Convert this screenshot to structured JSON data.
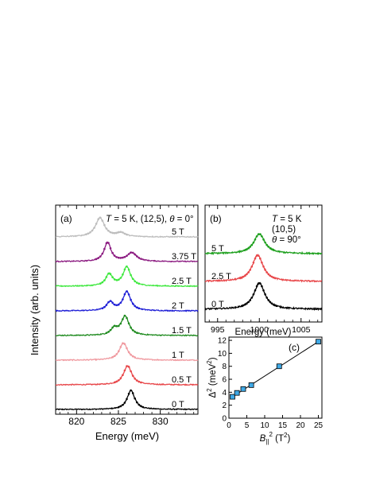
{
  "chart_data": [
    {
      "id": "a",
      "type": "line",
      "panel_label": "(a)",
      "annotation": {
        "T": "T",
        "eq1": " = 5 K,  (12,5), ",
        "theta": "θ",
        "eq2": " = 0°"
      },
      "xlabel": "Energy (meV)",
      "ylabel": "Intensity (arb. units)",
      "xlim": [
        817.5,
        834.5
      ],
      "xticks": [
        820,
        825,
        830
      ],
      "series": [
        {
          "name": "0 T",
          "color": "#000000",
          "peaks": [
            [
              826.5,
              1.0,
              0.55
            ]
          ]
        },
        {
          "name": "0.5 T",
          "color": "#e8474a",
          "peaks": [
            [
              826.1,
              1.0,
              0.6
            ]
          ]
        },
        {
          "name": "1 T",
          "color": "#f09aa0",
          "peaks": [
            [
              825.6,
              0.9,
              0.6
            ]
          ]
        },
        {
          "name": "1.5 T",
          "color": "#1e8a1e",
          "peaks": [
            [
              825.8,
              1.0,
              0.55
            ],
            [
              824.5,
              0.35,
              0.5
            ]
          ]
        },
        {
          "name": "2 T",
          "color": "#1f1fd6",
          "peaks": [
            [
              826.0,
              1.0,
              0.55
            ],
            [
              824.0,
              0.45,
              0.5
            ]
          ]
        },
        {
          "name": "2.5 T",
          "color": "#3ee83e",
          "peaks": [
            [
              826.0,
              1.0,
              0.55
            ],
            [
              823.9,
              0.62,
              0.5
            ]
          ]
        },
        {
          "name": "3.75 T",
          "color": "#8b1a80",
          "peaks": [
            [
              823.7,
              1.0,
              0.5
            ],
            [
              826.6,
              0.45,
              0.7
            ]
          ]
        },
        {
          "name": "5 T",
          "color": "#bdbdbd",
          "peaks": [
            [
              822.8,
              1.0,
              0.65
            ],
            [
              825.3,
              0.2,
              0.6
            ]
          ]
        }
      ]
    },
    {
      "id": "b",
      "type": "line",
      "panel_label": "(b)",
      "annotation": {
        "line1_T": "T",
        "line1_rest": " = 5 K",
        "line2": "(10,5)",
        "line3_theta": "θ",
        "line3_rest": " = 90°"
      },
      "xlabel": "Energy (meV)",
      "xlim": [
        993.5,
        1007.5
      ],
      "xticks": [
        995,
        1000,
        1005
      ],
      "series": [
        {
          "name": "0 T",
          "color": "#000000",
          "peaks": [
            [
              1000.0,
              1.0,
              0.8
            ]
          ]
        },
        {
          "name": "2.5 T",
          "color": "#e8474a",
          "peaks": [
            [
              999.8,
              1.0,
              0.8
            ]
          ]
        },
        {
          "name": "5 T",
          "color": "#1ea01e",
          "peaks": [
            [
              1000.0,
              0.75,
              0.8
            ]
          ]
        }
      ]
    },
    {
      "id": "c",
      "type": "scatter",
      "panel_label": "(c)",
      "xlabel": {
        "B": "B",
        "sub": "||",
        "sup": "2",
        "rest": " (T",
        "sup2": "2",
        "close": ")"
      },
      "ylabel": {
        "delta": "Δ",
        "sup": "2",
        "rest": " (meV",
        "sup2": "2",
        "close": ")"
      },
      "xlim": [
        0,
        26
      ],
      "ylim": [
        0,
        12.5
      ],
      "xticks": [
        0,
        5,
        10,
        15,
        20,
        25
      ],
      "yticks": [
        0,
        2,
        4,
        6,
        8,
        10,
        12
      ],
      "marker_color": "#3fa9e6",
      "points": [
        [
          1.0,
          3.3
        ],
        [
          2.25,
          3.9
        ],
        [
          4.0,
          4.5
        ],
        [
          6.25,
          5.1
        ],
        [
          14.06,
          8.0
        ],
        [
          25.0,
          11.8
        ]
      ],
      "fit_line": [
        [
          1.0,
          3.3
        ],
        [
          25.0,
          11.8
        ]
      ]
    }
  ]
}
